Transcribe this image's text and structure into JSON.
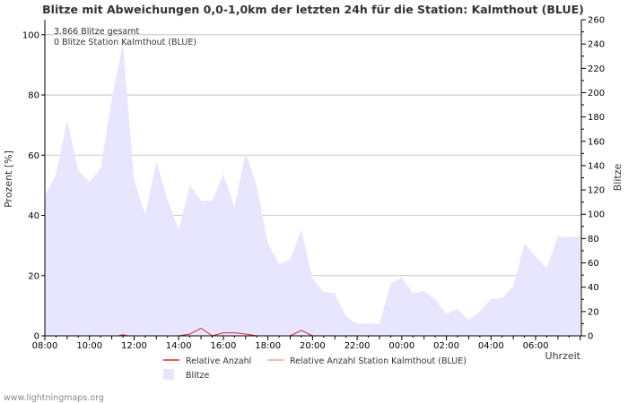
{
  "chart_data": {
    "type": "area",
    "title": "Blitze mit Abweichungen 0,0-1,0km der letzten 24h für die Station: Kalmthout (BLUE)",
    "ylabel_left": "Prozent   [%]",
    "ylabel_right": "Blitze",
    "xlabel": "Uhrzeit",
    "ylim_left": [
      0,
      105
    ],
    "ylim_right": [
      0,
      260
    ],
    "yticks_left": [
      0,
      20,
      40,
      60,
      80,
      100
    ],
    "yticks_right": [
      0,
      20,
      40,
      60,
      80,
      100,
      120,
      140,
      160,
      180,
      200,
      220,
      240,
      260
    ],
    "x_hours": [
      0,
      24.05
    ],
    "xtick_labels": [
      "08:00",
      "10:00",
      "12:00",
      "14:00",
      "16:00",
      "18:00",
      "20:00",
      "22:00",
      "00:00",
      "02:00",
      "04:00",
      "06:00"
    ],
    "annotations": [
      "3.866 Blitze gesamt",
      "0 Blitze Station Kalmthout (BLUE)"
    ],
    "series": [
      {
        "name": "Blitze",
        "axis": "right",
        "style": "area",
        "color": "#e8e6ff",
        "x": [
          0,
          0.5,
          1,
          1.5,
          2,
          2.5,
          3,
          3.5,
          4,
          4.5,
          5,
          5.5,
          6,
          6.5,
          7,
          7.5,
          8,
          8.5,
          9,
          9.5,
          10,
          10.5,
          11,
          11.5,
          12,
          12.5,
          13,
          13.5,
          14,
          14.5,
          15,
          15.5,
          16,
          16.5,
          17,
          17.5,
          18,
          18.5,
          19,
          19.5,
          20,
          20.5,
          21,
          21.5,
          22,
          22.5,
          23,
          23.5,
          24
        ],
        "values": [
          115,
          133,
          177,
          136,
          126,
          138,
          195,
          240,
          128,
          100,
          143,
          112,
          87,
          124,
          111,
          111,
          133,
          106,
          151,
          123,
          76,
          59,
          63,
          87,
          47,
          36,
          35,
          16,
          10,
          10,
          10,
          43,
          48,
          35,
          37,
          30,
          18,
          22,
          13,
          20,
          30,
          31,
          41,
          76,
          65,
          56,
          82,
          81,
          82
        ]
      },
      {
        "name": "Relative Anzahl",
        "axis": "left",
        "style": "line",
        "color": "#d42b2b",
        "x": [
          0,
          2,
          3.3,
          3.5,
          3.7,
          4,
          5,
          6,
          6.5,
          7,
          7.5,
          8,
          8.5,
          9,
          9.5,
          10,
          11,
          11.5,
          12,
          12.5,
          13,
          14,
          16,
          18,
          20,
          22,
          24
        ],
        "values": [
          0,
          0,
          0,
          0.4,
          0,
          0,
          0,
          0,
          0.6,
          2.5,
          0,
          1,
          1,
          0.6,
          0,
          0,
          0,
          1.8,
          0,
          0,
          0,
          0,
          0,
          0,
          0,
          0,
          0
        ]
      },
      {
        "name": "Relative Anzahl Station Kalmthout (BLUE)",
        "axis": "left",
        "style": "line",
        "color": "#f4a69a",
        "x": [
          0,
          24
        ],
        "values": [
          0,
          0
        ]
      }
    ],
    "legend": [
      "Relative Anzahl",
      "Relative Anzahl Station Kalmthout (BLUE)",
      "Blitze"
    ]
  },
  "footer": "www.lightningmaps.org"
}
